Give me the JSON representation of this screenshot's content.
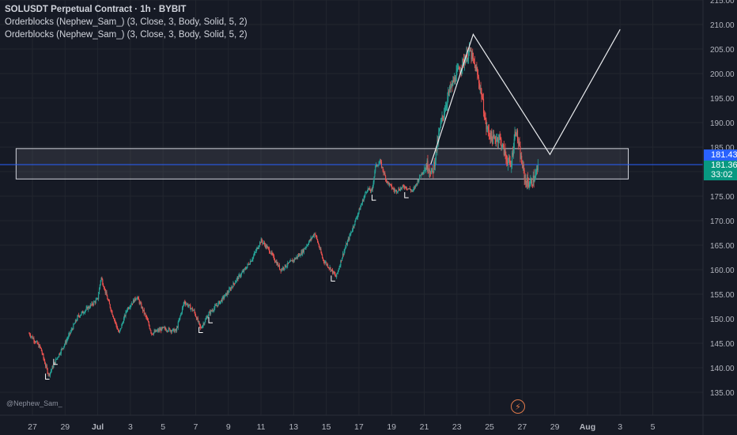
{
  "legend": {
    "title": "SOLUSDT Perpetual Contract · 1h · BYBIT",
    "indicators": [
      "Orderblocks (Nephew_Sam_) (3, Close, 3, Body, Solid, 5, 2)",
      "Orderblocks (Nephew_Sam_) (3, Close, 3, Body, Solid, 5, 2)"
    ]
  },
  "watermark": "@Nephew_Sam_",
  "price_tags": {
    "level_price": "181.43",
    "last_price": "181.36",
    "countdown": "33:02"
  },
  "colors": {
    "background": "#161a25",
    "up": "#26a69a",
    "down": "#ef5350",
    "level_line": "#2962ff",
    "tag_green": "#089981"
  },
  "icons": [
    "lightning-icon"
  ],
  "chart_data": {
    "type": "candlestick",
    "symbol": "SOLUSDT Perpetual Contract",
    "interval": "1h",
    "exchange": "BYBIT",
    "ylim": [
      132,
      215
    ],
    "y_ticks": [
      "135.00",
      "140.00",
      "145.00",
      "150.00",
      "155.00",
      "160.00",
      "165.00",
      "170.00",
      "175.00",
      "180.00",
      "185.00",
      "190.00",
      "195.00",
      "200.00",
      "205.00",
      "210.00",
      "215.00"
    ],
    "x_ticks": [
      "27",
      "29",
      "Jul",
      "3",
      "5",
      "7",
      "9",
      "11",
      "13",
      "15",
      "17",
      "19",
      "21",
      "23",
      "25",
      "27",
      "29",
      "Aug",
      "3",
      "5"
    ],
    "price_anchors": [
      {
        "day": 26.8,
        "price": 147.0
      },
      {
        "day": 27.5,
        "price": 144.0
      },
      {
        "day": 27.8,
        "price": 140.5
      },
      {
        "day": 28.0,
        "price": 138.5
      },
      {
        "day": 28.5,
        "price": 142.0
      },
      {
        "day": 29.0,
        "price": 145.0
      },
      {
        "day": 29.8,
        "price": 150.5
      },
      {
        "day": 30.5,
        "price": 152.5
      },
      {
        "day": 31.0,
        "price": 154.0
      },
      {
        "day": 31.2,
        "price": 158.5
      },
      {
        "day": 31.6,
        "price": 154.0
      },
      {
        "day": 32.3,
        "price": 147.0
      },
      {
        "day": 32.8,
        "price": 152.0
      },
      {
        "day": 33.4,
        "price": 154.5
      },
      {
        "day": 34.0,
        "price": 150.0
      },
      {
        "day": 34.3,
        "price": 147.0
      },
      {
        "day": 35.0,
        "price": 148.0
      },
      {
        "day": 35.8,
        "price": 147.5
      },
      {
        "day": 36.3,
        "price": 153.5
      },
      {
        "day": 36.9,
        "price": 151.5
      },
      {
        "day": 37.3,
        "price": 148.0
      },
      {
        "day": 37.8,
        "price": 151.0
      },
      {
        "day": 38.5,
        "price": 153.5
      },
      {
        "day": 39.0,
        "price": 155.5
      },
      {
        "day": 39.5,
        "price": 158.0
      },
      {
        "day": 40.0,
        "price": 160.0
      },
      {
        "day": 40.5,
        "price": 162.5
      },
      {
        "day": 41.0,
        "price": 166.0
      },
      {
        "day": 41.5,
        "price": 164.0
      },
      {
        "day": 42.2,
        "price": 160.0
      },
      {
        "day": 43.0,
        "price": 162.0
      },
      {
        "day": 43.5,
        "price": 163.5
      },
      {
        "day": 44.3,
        "price": 167.5
      },
      {
        "day": 44.8,
        "price": 162.0
      },
      {
        "day": 45.3,
        "price": 160.0
      },
      {
        "day": 45.6,
        "price": 158.5
      },
      {
        "day": 46.0,
        "price": 163.0
      },
      {
        "day": 46.5,
        "price": 167.5
      },
      {
        "day": 47.0,
        "price": 172.0
      },
      {
        "day": 47.5,
        "price": 176.5
      },
      {
        "day": 47.8,
        "price": 176.0
      },
      {
        "day": 48.0,
        "price": 181.0
      },
      {
        "day": 48.3,
        "price": 182.0
      },
      {
        "day": 48.7,
        "price": 178.0
      },
      {
        "day": 49.2,
        "price": 176.0
      },
      {
        "day": 49.8,
        "price": 177.0
      },
      {
        "day": 50.3,
        "price": 176.0
      },
      {
        "day": 50.8,
        "price": 179.5
      },
      {
        "day": 51.2,
        "price": 181.5
      },
      {
        "day": 51.5,
        "price": 179.5
      },
      {
        "day": 52.0,
        "price": 189.5
      },
      {
        "day": 52.5,
        "price": 196.0
      },
      {
        "day": 53.0,
        "price": 200.0
      },
      {
        "day": 53.5,
        "price": 203.0
      },
      {
        "day": 53.8,
        "price": 204.5
      },
      {
        "day": 54.2,
        "price": 200.5
      },
      {
        "day": 54.5,
        "price": 196.0
      },
      {
        "day": 54.8,
        "price": 189.0
      },
      {
        "day": 55.2,
        "price": 186.5
      },
      {
        "day": 55.6,
        "price": 187.0
      },
      {
        "day": 56.0,
        "price": 183.0
      },
      {
        "day": 56.3,
        "price": 181.0
      },
      {
        "day": 56.6,
        "price": 189.0
      },
      {
        "day": 56.9,
        "price": 183.0
      },
      {
        "day": 57.2,
        "price": 178.0
      },
      {
        "day": 57.5,
        "price": 177.5
      },
      {
        "day": 57.8,
        "price": 179.0
      },
      {
        "day": 58.0,
        "price": 181.36
      }
    ],
    "orderblock_zone": {
      "top": 184.7,
      "bottom": 178.5,
      "start_day": 26.0,
      "end_day": 63.5
    },
    "horizontal_level": 181.43,
    "projection_path": [
      {
        "day": 51.4,
        "price": 181.5
      },
      {
        "day": 54.0,
        "price": 208.0
      },
      {
        "day": 58.7,
        "price": 183.5
      },
      {
        "day": 63.0,
        "price": 209.0
      }
    ],
    "orderblock_markers": [
      {
        "day": 27.9,
        "price": 138.0
      },
      {
        "day": 28.4,
        "price": 141.0
      },
      {
        "day": 37.3,
        "price": 147.5
      },
      {
        "day": 37.9,
        "price": 149.5
      },
      {
        "day": 45.4,
        "price": 158.0
      },
      {
        "day": 47.9,
        "price": 174.5
      },
      {
        "day": 49.9,
        "price": 175.0
      }
    ]
  }
}
